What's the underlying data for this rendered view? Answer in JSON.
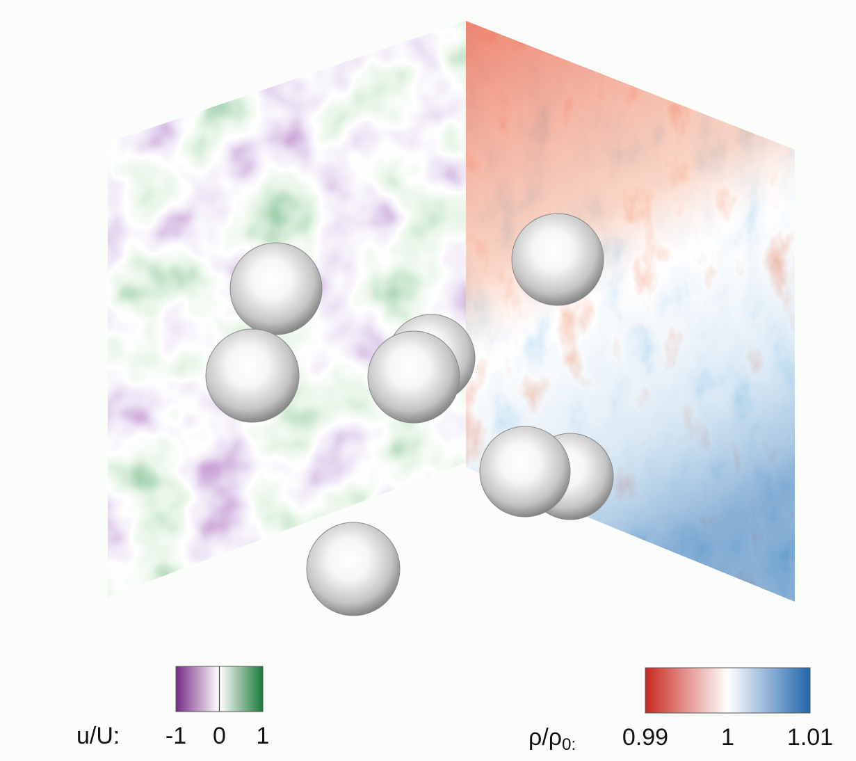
{
  "colorbars": [
    {
      "label": "u/U:",
      "lim": [
        -1,
        1
      ],
      "ticks": [
        -1,
        0,
        1
      ],
      "colors": [
        "#762a83",
        "#ffffff",
        "#1b7837"
      ],
      "center_line": true
    },
    {
      "label": "ρ/ρ",
      "label_subscript": "0:",
      "lim": [
        0.99,
        1.01
      ],
      "ticks": [
        0.99,
        1,
        1.01
      ],
      "colors": [
        "#c8281e",
        "#ffffff",
        "#2166ac"
      ],
      "center_line": false
    }
  ]
}
